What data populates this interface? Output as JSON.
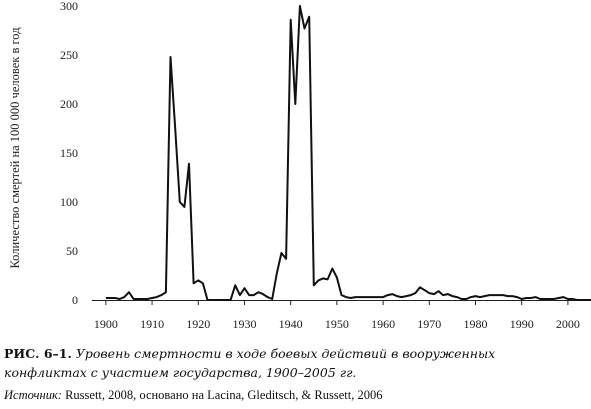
{
  "chart_data": {
    "type": "line",
    "title": "",
    "xlabel": "",
    "ylabel": "Количество смертей на 100 000 человек в год",
    "xlim": [
      1897,
      2005
    ],
    "ylim": [
      0,
      300
    ],
    "x_ticks": [
      1900,
      1910,
      1920,
      1930,
      1940,
      1950,
      1960,
      1970,
      1980,
      1990,
      2000
    ],
    "y_ticks": [
      0,
      50,
      100,
      150,
      200,
      250,
      300
    ],
    "grid": false,
    "series": [
      {
        "x": [
          1900,
          1901,
          1902,
          1903,
          1904,
          1905,
          1906,
          1907,
          1908,
          1909,
          1910,
          1911,
          1912,
          1913,
          1914,
          1915,
          1916,
          1917,
          1918,
          1919,
          1920,
          1921,
          1922,
          1923,
          1924,
          1925,
          1926,
          1927,
          1928,
          1929,
          1930,
          1931,
          1932,
          1933,
          1934,
          1935,
          1936,
          1937,
          1938,
          1939,
          1940,
          1941,
          1942,
          1943,
          1944,
          1945,
          1946,
          1947,
          1948,
          1949,
          1950,
          1951,
          1952,
          1953,
          1954,
          1955,
          1956,
          1957,
          1958,
          1959,
          1960,
          1961,
          1962,
          1963,
          1964,
          1965,
          1966,
          1967,
          1968,
          1969,
          1970,
          1971,
          1972,
          1973,
          1974,
          1975,
          1976,
          1977,
          1978,
          1979,
          1980,
          1981,
          1982,
          1983,
          1984,
          1985,
          1986,
          1987,
          1988,
          1989,
          1990,
          1991,
          1992,
          1993,
          1994,
          1995,
          1996,
          1997,
          1998,
          1999,
          2000,
          2001,
          2002,
          2003,
          2004,
          2005
        ],
        "y": [
          2,
          2,
          2,
          1,
          3,
          8,
          1,
          1,
          1,
          1,
          2,
          3,
          5,
          8,
          248,
          175,
          100,
          95,
          139,
          17,
          20,
          17,
          0,
          0,
          0,
          0,
          0,
          0,
          15,
          5,
          12,
          5,
          5,
          8,
          6,
          3,
          1,
          27,
          48,
          42,
          286,
          200,
          300,
          277,
          289,
          15,
          20,
          22,
          21,
          32,
          23,
          5,
          3,
          2,
          3,
          3,
          3,
          3,
          3,
          3,
          3,
          5,
          6,
          4,
          3,
          4,
          5,
          7,
          13,
          10,
          7,
          6,
          9,
          5,
          6,
          4,
          3,
          1,
          1,
          3,
          4,
          3,
          4,
          5,
          5,
          5,
          5,
          4,
          4,
          3,
          1,
          2,
          2,
          3,
          1,
          1,
          1,
          1,
          2,
          3,
          1,
          1,
          0,
          0,
          0,
          0
        ],
        "color": "#111111"
      }
    ]
  },
  "caption": {
    "label": "РИС. 6–1.",
    "line1": "Уровень смертности в ходе боевых действий в вооруженных",
    "line2": "конфликтах с участием государства, 1900–2005 гг."
  },
  "source": {
    "label": "Источник:",
    "text": "Russett, 2008, основано на Lacina, Gleditsch, & Russett, 2006"
  }
}
